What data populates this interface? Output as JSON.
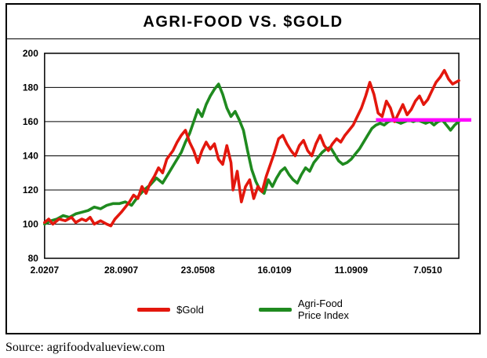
{
  "chart_data": {
    "type": "line",
    "title": "AGRI-FOOD VS. $GOLD",
    "xlabel": "",
    "ylabel": "",
    "ylim": [
      80,
      200
    ],
    "y_ticks": [
      80,
      100,
      120,
      140,
      160,
      180,
      200
    ],
    "x_ticks": [
      {
        "label": "2.0207",
        "pos": 0.0
      },
      {
        "label": "28.0907",
        "pos": 0.185
      },
      {
        "label": "23.0508",
        "pos": 0.37
      },
      {
        "label": "16.0109",
        "pos": 0.555
      },
      {
        "label": "11.0909",
        "pos": 0.74
      },
      {
        "label": "7.0510",
        "pos": 0.925
      }
    ],
    "grid": true,
    "legend_position": "bottom",
    "series": [
      {
        "name": "$Gold",
        "color": "#e3170d",
        "label_lines": [
          "$Gold"
        ],
        "points": [
          [
            0.0,
            101
          ],
          [
            0.01,
            103
          ],
          [
            0.02,
            100
          ],
          [
            0.035,
            103
          ],
          [
            0.05,
            102
          ],
          [
            0.065,
            104
          ],
          [
            0.075,
            101
          ],
          [
            0.09,
            103
          ],
          [
            0.1,
            102
          ],
          [
            0.11,
            104
          ],
          [
            0.12,
            100
          ],
          [
            0.135,
            102
          ],
          [
            0.15,
            100
          ],
          [
            0.16,
            99
          ],
          [
            0.17,
            103
          ],
          [
            0.185,
            107
          ],
          [
            0.195,
            110
          ],
          [
            0.205,
            113
          ],
          [
            0.215,
            117
          ],
          [
            0.225,
            115
          ],
          [
            0.235,
            122
          ],
          [
            0.245,
            118
          ],
          [
            0.255,
            124
          ],
          [
            0.265,
            128
          ],
          [
            0.275,
            133
          ],
          [
            0.285,
            130
          ],
          [
            0.295,
            138
          ],
          [
            0.31,
            143
          ],
          [
            0.32,
            148
          ],
          [
            0.33,
            152
          ],
          [
            0.34,
            155
          ],
          [
            0.35,
            148
          ],
          [
            0.36,
            143
          ],
          [
            0.37,
            136
          ],
          [
            0.38,
            143
          ],
          [
            0.39,
            148
          ],
          [
            0.4,
            144
          ],
          [
            0.41,
            147
          ],
          [
            0.42,
            138
          ],
          [
            0.43,
            135
          ],
          [
            0.44,
            146
          ],
          [
            0.45,
            136
          ],
          [
            0.455,
            120
          ],
          [
            0.465,
            131
          ],
          [
            0.475,
            113
          ],
          [
            0.485,
            122
          ],
          [
            0.495,
            126
          ],
          [
            0.505,
            115
          ],
          [
            0.515,
            122
          ],
          [
            0.525,
            119
          ],
          [
            0.535,
            128
          ],
          [
            0.545,
            135
          ],
          [
            0.555,
            142
          ],
          [
            0.565,
            150
          ],
          [
            0.575,
            152
          ],
          [
            0.585,
            147
          ],
          [
            0.595,
            143
          ],
          [
            0.605,
            140
          ],
          [
            0.615,
            146
          ],
          [
            0.625,
            149
          ],
          [
            0.635,
            143
          ],
          [
            0.645,
            140
          ],
          [
            0.655,
            147
          ],
          [
            0.665,
            152
          ],
          [
            0.675,
            146
          ],
          [
            0.685,
            143
          ],
          [
            0.695,
            147
          ],
          [
            0.705,
            150
          ],
          [
            0.715,
            148
          ],
          [
            0.725,
            152
          ],
          [
            0.735,
            155
          ],
          [
            0.745,
            158
          ],
          [
            0.755,
            163
          ],
          [
            0.765,
            168
          ],
          [
            0.775,
            175
          ],
          [
            0.785,
            183
          ],
          [
            0.795,
            176
          ],
          [
            0.805,
            165
          ],
          [
            0.815,
            163
          ],
          [
            0.825,
            172
          ],
          [
            0.835,
            168
          ],
          [
            0.845,
            160
          ],
          [
            0.855,
            165
          ],
          [
            0.865,
            170
          ],
          [
            0.875,
            164
          ],
          [
            0.885,
            167
          ],
          [
            0.895,
            172
          ],
          [
            0.905,
            175
          ],
          [
            0.915,
            170
          ],
          [
            0.925,
            173
          ],
          [
            0.935,
            178
          ],
          [
            0.945,
            183
          ],
          [
            0.955,
            186
          ],
          [
            0.965,
            190
          ],
          [
            0.975,
            185
          ],
          [
            0.985,
            182
          ],
          [
            1.0,
            184
          ]
        ]
      },
      {
        "name": "Agri-Food Price Index",
        "color": "#1f8a1f",
        "label_lines": [
          "Agri-Food",
          "Price Index"
        ],
        "points": [
          [
            0.0,
            100
          ],
          [
            0.015,
            102
          ],
          [
            0.03,
            103
          ],
          [
            0.045,
            105
          ],
          [
            0.06,
            104
          ],
          [
            0.075,
            106
          ],
          [
            0.09,
            107
          ],
          [
            0.105,
            108
          ],
          [
            0.12,
            110
          ],
          [
            0.135,
            109
          ],
          [
            0.15,
            111
          ],
          [
            0.165,
            112
          ],
          [
            0.18,
            112
          ],
          [
            0.195,
            113
          ],
          [
            0.21,
            111
          ],
          [
            0.225,
            116
          ],
          [
            0.24,
            120
          ],
          [
            0.255,
            123
          ],
          [
            0.27,
            127
          ],
          [
            0.285,
            124
          ],
          [
            0.3,
            130
          ],
          [
            0.315,
            136
          ],
          [
            0.33,
            142
          ],
          [
            0.34,
            148
          ],
          [
            0.35,
            153
          ],
          [
            0.36,
            160
          ],
          [
            0.37,
            167
          ],
          [
            0.38,
            163
          ],
          [
            0.39,
            170
          ],
          [
            0.4,
            175
          ],
          [
            0.41,
            179
          ],
          [
            0.42,
            182
          ],
          [
            0.43,
            176
          ],
          [
            0.44,
            168
          ],
          [
            0.45,
            163
          ],
          [
            0.46,
            166
          ],
          [
            0.47,
            161
          ],
          [
            0.48,
            155
          ],
          [
            0.49,
            143
          ],
          [
            0.5,
            132
          ],
          [
            0.51,
            125
          ],
          [
            0.52,
            120
          ],
          [
            0.53,
            118
          ],
          [
            0.54,
            126
          ],
          [
            0.55,
            122
          ],
          [
            0.56,
            127
          ],
          [
            0.57,
            131
          ],
          [
            0.58,
            133
          ],
          [
            0.59,
            129
          ],
          [
            0.6,
            126
          ],
          [
            0.61,
            124
          ],
          [
            0.62,
            129
          ],
          [
            0.63,
            133
          ],
          [
            0.64,
            131
          ],
          [
            0.65,
            136
          ],
          [
            0.66,
            139
          ],
          [
            0.67,
            142
          ],
          [
            0.68,
            144
          ],
          [
            0.69,
            145
          ],
          [
            0.7,
            141
          ],
          [
            0.71,
            137
          ],
          [
            0.72,
            135
          ],
          [
            0.73,
            136
          ],
          [
            0.74,
            138
          ],
          [
            0.75,
            141
          ],
          [
            0.76,
            144
          ],
          [
            0.77,
            148
          ],
          [
            0.78,
            152
          ],
          [
            0.79,
            156
          ],
          [
            0.8,
            158
          ],
          [
            0.81,
            159
          ],
          [
            0.82,
            158
          ],
          [
            0.83,
            160
          ],
          [
            0.84,
            161
          ],
          [
            0.85,
            160
          ],
          [
            0.86,
            159
          ],
          [
            0.87,
            160
          ],
          [
            0.88,
            161
          ],
          [
            0.89,
            160
          ],
          [
            0.9,
            161
          ],
          [
            0.91,
            160
          ],
          [
            0.92,
            159
          ],
          [
            0.93,
            160
          ],
          [
            0.94,
            158
          ],
          [
            0.95,
            160
          ],
          [
            0.96,
            161
          ],
          [
            0.97,
            158
          ],
          [
            0.98,
            155
          ],
          [
            0.99,
            158
          ],
          [
            1.0,
            160
          ]
        ]
      }
    ],
    "annotation_line": {
      "color": "#ff00ff",
      "y": 161,
      "x1": 0.8,
      "x2": 1.03
    }
  },
  "source": {
    "text": "Source: agrifoodvalueview.com"
  }
}
